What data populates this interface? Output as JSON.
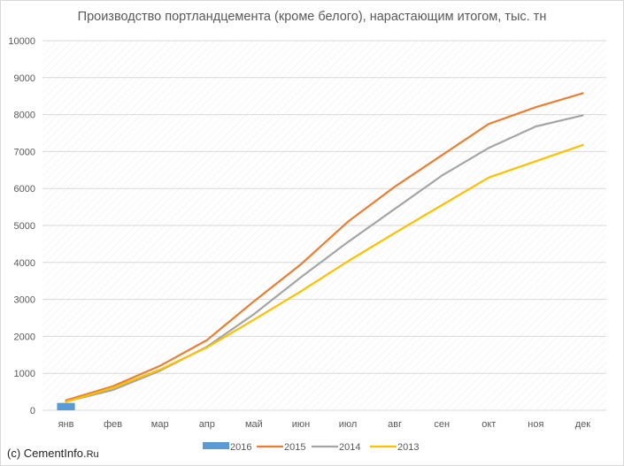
{
  "footer": {
    "prefix": "(c) CementInfo.",
    "suffix": "Ru"
  },
  "chart_data": {
    "type": "line",
    "title": "Производство портландцемента (кроме белого), нарастающим итогом, тыс. тн",
    "categories": [
      "янв",
      "фев",
      "мар",
      "апр",
      "май",
      "июн",
      "июл",
      "авг",
      "сен",
      "окт",
      "ноя",
      "дек"
    ],
    "ylim": [
      0,
      10000
    ],
    "yticks": [
      0,
      1000,
      2000,
      3000,
      4000,
      5000,
      6000,
      7000,
      8000,
      9000,
      10000
    ],
    "grid": true,
    "legend": "bottom",
    "series": [
      {
        "name": "2016",
        "kind": "bar",
        "color": "#5b9bd5",
        "values": [
          200,
          null,
          null,
          null,
          null,
          null,
          null,
          null,
          null,
          null,
          null,
          null
        ]
      },
      {
        "name": "2015",
        "kind": "line",
        "color": "#ed7d31",
        "values": [
          270,
          650,
          1200,
          1900,
          2950,
          3950,
          5100,
          6050,
          6900,
          7750,
          8200,
          8580
        ]
      },
      {
        "name": "2014",
        "kind": "line",
        "color": "#a5a5a5",
        "values": [
          240,
          550,
          1070,
          1720,
          2600,
          3600,
          4550,
          5450,
          6350,
          7100,
          7680,
          7980
        ]
      },
      {
        "name": "2013",
        "kind": "line",
        "color": "#ffc000",
        "values": [
          230,
          610,
          1100,
          1700,
          2450,
          3220,
          4030,
          4800,
          5550,
          6300,
          6740,
          7180
        ]
      }
    ]
  }
}
